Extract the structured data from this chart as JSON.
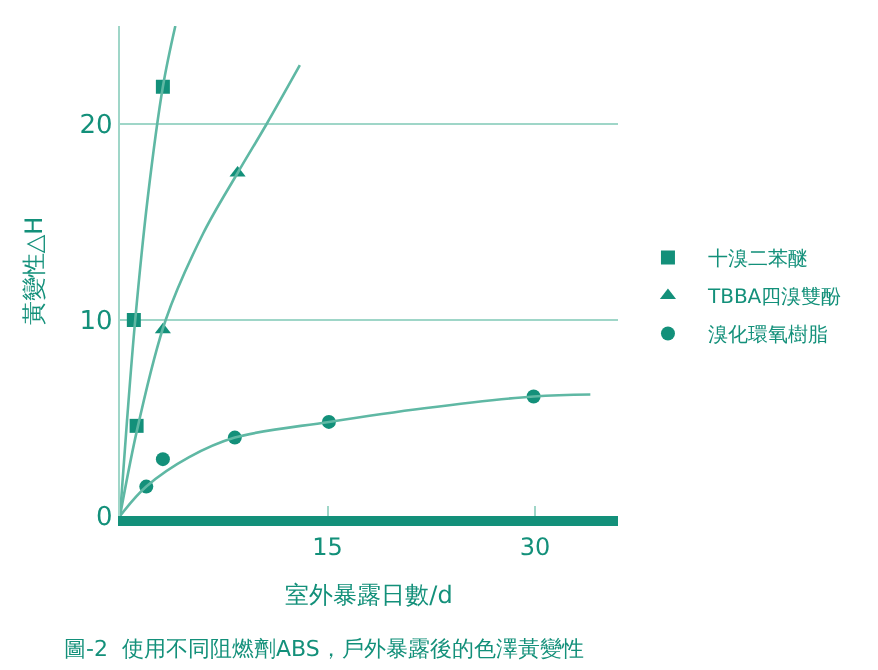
{
  "chart_data": {
    "type": "scatter",
    "xlabel": "室外暴露日數/d",
    "ylabel": "黃變性△H",
    "annotations": [
      "圖-2  使用不同阻燃劑ABS，戶外暴露後的色澤黃變性"
    ],
    "xlim": [
      0,
      36
    ],
    "xticks": [
      15,
      30
    ],
    "ylim": [
      0,
      25
    ],
    "yticks": [
      0,
      10,
      20
    ],
    "grid": "y",
    "legend": "right",
    "series": [
      {
        "name": "十溴二苯醚",
        "marker": "square",
        "color": "#13907a",
        "x": [
          1.0,
          1.2,
          3.1
        ],
        "values": [
          10,
          4.6,
          21.9
        ]
      },
      {
        "name": "TBBA四溴雙酚",
        "marker": "triangle",
        "color": "#13907a",
        "x": [
          3.1,
          8.5
        ],
        "values": [
          9.5,
          17.5
        ]
      },
      {
        "name": "溴化環氧樹脂",
        "marker": "circle",
        "color": "#13907a",
        "x": [
          1.9,
          3.1,
          8.3,
          15.1,
          29.9
        ],
        "values": [
          1.5,
          2.9,
          4.0,
          4.8,
          6.1
        ]
      },
      {
        "type": "line",
        "marker": "none",
        "color": "#5fb8a4",
        "x": [
          0,
          0.5,
          1.1,
          2.0,
          3.1,
          4.0
        ],
        "values": [
          0,
          4.8,
          10,
          16.2,
          21.9,
          25
        ]
      },
      {
        "type": "line",
        "marker": "none",
        "color": "#5fb8a4",
        "x": [
          0,
          1.3,
          3.3,
          6,
          8.5,
          10.6,
          13
        ],
        "values": [
          0,
          4.6,
          10,
          14.4,
          17.5,
          20,
          23
        ]
      },
      {
        "type": "line",
        "marker": "none",
        "color": "#5fb8a4",
        "x": [
          0,
          1.9,
          5,
          8.3,
          15.1,
          22,
          29.9,
          34
        ],
        "values": [
          0,
          1.5,
          3.0,
          4.0,
          4.8,
          5.5,
          6.1,
          6.2
        ]
      }
    ]
  }
}
